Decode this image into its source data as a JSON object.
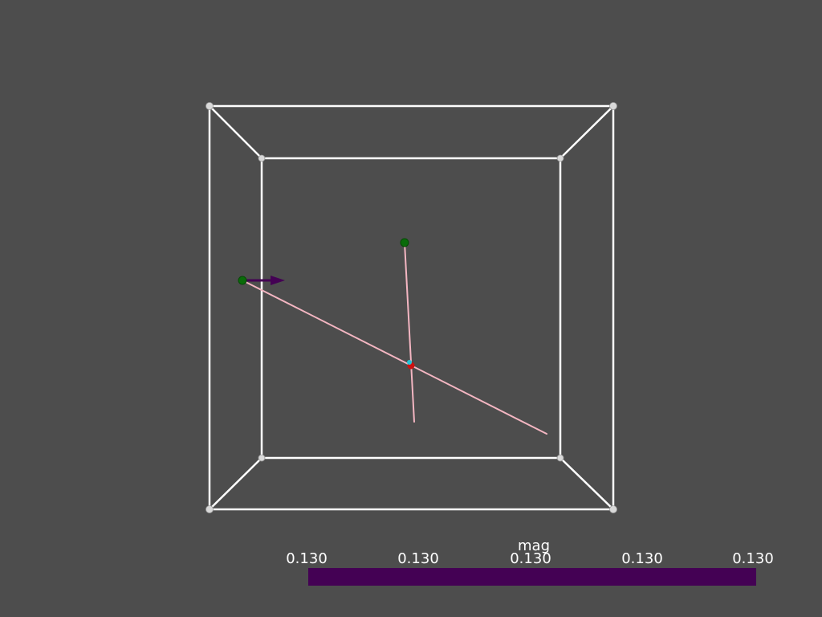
{
  "colors": {
    "background": "#4d4d4d",
    "box_edges": "#ffffff",
    "box_corners": "#d9d9d9",
    "streamlines": "#f4b6c2",
    "seed_points": "#0a6b0a",
    "arrow_glyph": "#440154",
    "center_marker_red": "#cc1111",
    "center_marker_cyan": "#22c4d8",
    "scalar_bar_fill": "#440154"
  },
  "scalar_bar": {
    "title": "mag",
    "tick_labels": [
      "0.130",
      "0.130",
      "0.130",
      "0.130",
      "0.130"
    ],
    "orientation": "horizontal",
    "placement": "bottom"
  }
}
